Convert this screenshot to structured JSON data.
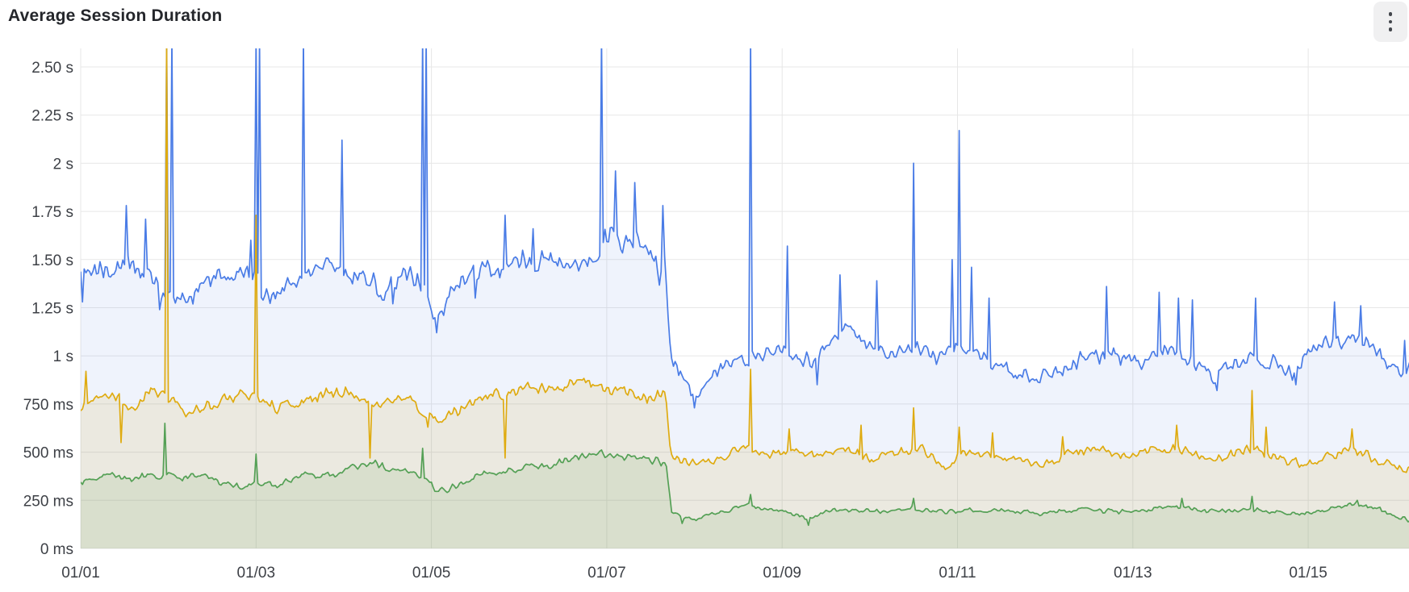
{
  "panel": {
    "title": "Average Session Duration",
    "menu_icon": "kebab-vertical"
  },
  "chart_data": {
    "type": "area",
    "title": "Average Session Duration",
    "unit": "seconds",
    "legend": "none-visible",
    "grid": true,
    "colors": {
      "grid": "#e7e7e7",
      "axis_text": "#3d4046",
      "background": "#ffffff"
    },
    "y_axis": {
      "min": 0,
      "max": 2.5,
      "ticks": [
        {
          "v": 0,
          "label": "0 ms"
        },
        {
          "v": 0.25,
          "label": "250 ms"
        },
        {
          "v": 0.5,
          "label": "500 ms"
        },
        {
          "v": 0.75,
          "label": "750 ms"
        },
        {
          "v": 1,
          "label": "1 s"
        },
        {
          "v": 1.25,
          "label": "1.25 s"
        },
        {
          "v": 1.5,
          "label": "1.50 s"
        },
        {
          "v": 1.75,
          "label": "1.75 s"
        },
        {
          "v": 2,
          "label": "2 s"
        },
        {
          "v": 2.25,
          "label": "2.25 s"
        },
        {
          "v": 2.5,
          "label": "2.50 s"
        }
      ]
    },
    "x_axis": {
      "start_day": 0,
      "end_day": 15.15,
      "ticks": [
        {
          "day": 0,
          "label": "01/01"
        },
        {
          "day": 2,
          "label": "01/03"
        },
        {
          "day": 4,
          "label": "01/05"
        },
        {
          "day": 6,
          "label": "01/07"
        },
        {
          "day": 8,
          "label": "01/09"
        },
        {
          "day": 10,
          "label": "01/11"
        },
        {
          "day": 12,
          "label": "01/13"
        },
        {
          "day": 14,
          "label": "01/15"
        }
      ]
    },
    "series": [
      {
        "name": "blue-series",
        "color": "#4a7ce6",
        "fill": "rgba(95,135,225,0.10)",
        "base": [
          [
            0,
            1.48
          ],
          [
            0.25,
            1.44
          ],
          [
            0.5,
            1.5
          ],
          [
            0.7,
            1.46
          ],
          [
            0.88,
            1.34
          ],
          [
            1.0,
            1.3
          ],
          [
            1.3,
            1.31
          ],
          [
            1.55,
            1.44
          ],
          [
            1.8,
            1.41
          ],
          [
            2.0,
            1.39
          ],
          [
            2.15,
            1.31
          ],
          [
            2.4,
            1.39
          ],
          [
            2.7,
            1.47
          ],
          [
            3.0,
            1.45
          ],
          [
            3.25,
            1.39
          ],
          [
            3.5,
            1.33
          ],
          [
            3.75,
            1.43
          ],
          [
            3.95,
            1.3
          ],
          [
            4.05,
            1.2
          ],
          [
            4.2,
            1.3
          ],
          [
            4.4,
            1.44
          ],
          [
            4.7,
            1.43
          ],
          [
            5.0,
            1.48
          ],
          [
            5.3,
            1.48
          ],
          [
            5.6,
            1.46
          ],
          [
            5.85,
            1.5
          ],
          [
            6.0,
            1.6
          ],
          [
            6.25,
            1.62
          ],
          [
            6.45,
            1.53
          ],
          [
            6.58,
            1.42
          ],
          [
            6.66,
            1.52
          ],
          [
            6.73,
            1.02
          ],
          [
            6.85,
            0.9
          ],
          [
            7.0,
            0.8
          ],
          [
            7.15,
            0.88
          ],
          [
            7.35,
            0.96
          ],
          [
            7.6,
            0.98
          ],
          [
            7.8,
            1.0
          ],
          [
            8.05,
            1.02
          ],
          [
            8.35,
            0.97
          ],
          [
            8.6,
            1.08
          ],
          [
            8.75,
            1.17
          ],
          [
            8.95,
            1.06
          ],
          [
            9.2,
            1.0
          ],
          [
            9.5,
            1.04
          ],
          [
            9.8,
            0.99
          ],
          [
            10.05,
            1.06
          ],
          [
            10.3,
            1.0
          ],
          [
            10.6,
            0.92
          ],
          [
            10.9,
            0.88
          ],
          [
            11.15,
            0.93
          ],
          [
            11.5,
            0.99
          ],
          [
            11.8,
            1.01
          ],
          [
            12.1,
            0.96
          ],
          [
            12.35,
            1.04
          ],
          [
            12.6,
            1.0
          ],
          [
            12.95,
            0.88
          ],
          [
            13.2,
            0.97
          ],
          [
            13.5,
            0.99
          ],
          [
            13.8,
            0.9
          ],
          [
            14.1,
            1.04
          ],
          [
            14.35,
            1.09
          ],
          [
            14.6,
            1.07
          ],
          [
            14.85,
            1.0
          ],
          [
            15.05,
            0.9
          ],
          [
            15.15,
            0.95
          ]
        ],
        "jitter": [
          [
            0,
            0.05
          ],
          [
            5.8,
            0.05
          ],
          [
            6.0,
            0.065
          ],
          [
            6.6,
            0.065
          ],
          [
            6.78,
            0.03
          ],
          [
            15.15,
            0.038
          ]
        ],
        "spikes": [
          [
            0.02,
            1.28
          ],
          [
            0.52,
            1.78
          ],
          [
            0.73,
            1.71
          ],
          [
            0.9,
            1.24
          ],
          [
            0.98,
            2.65
          ],
          [
            1.03,
            2.65
          ],
          [
            1.93,
            1.6
          ],
          [
            1.99,
            2.65
          ],
          [
            2.05,
            2.65
          ],
          [
            2.55,
            2.65
          ],
          [
            2.98,
            2.12
          ],
          [
            3.55,
            1.27
          ],
          [
            3.89,
            2.65
          ],
          [
            3.94,
            2.65
          ],
          [
            4.05,
            1.12
          ],
          [
            4.5,
            1.3
          ],
          [
            4.85,
            1.73
          ],
          [
            5.15,
            1.66
          ],
          [
            5.94,
            2.65
          ],
          [
            6.1,
            1.96
          ],
          [
            6.32,
            1.9
          ],
          [
            6.64,
            1.78
          ],
          [
            7.0,
            0.73
          ],
          [
            7.63,
            2.65
          ],
          [
            8.05,
            1.57
          ],
          [
            8.4,
            0.85
          ],
          [
            8.65,
            1.42
          ],
          [
            9.07,
            1.39
          ],
          [
            9.5,
            2.0
          ],
          [
            9.93,
            1.5
          ],
          [
            10.03,
            2.17
          ],
          [
            10.15,
            1.46
          ],
          [
            10.35,
            1.3
          ],
          [
            11.7,
            1.36
          ],
          [
            12.3,
            1.33
          ],
          [
            12.52,
            1.3
          ],
          [
            12.68,
            1.29
          ],
          [
            12.95,
            0.82
          ],
          [
            13.4,
            1.3
          ],
          [
            13.85,
            0.85
          ],
          [
            14.3,
            1.28
          ],
          [
            14.6,
            1.26
          ],
          [
            15.1,
            1.08
          ]
        ]
      },
      {
        "name": "yellow-series",
        "color": "#dfab10",
        "fill": "rgba(205,165,25,0.12)",
        "base": [
          [
            0,
            0.74
          ],
          [
            0.2,
            0.78
          ],
          [
            0.4,
            0.8
          ],
          [
            0.55,
            0.72
          ],
          [
            0.8,
            0.82
          ],
          [
            1.0,
            0.78
          ],
          [
            1.2,
            0.72
          ],
          [
            1.5,
            0.75
          ],
          [
            1.8,
            0.8
          ],
          [
            2.0,
            0.78
          ],
          [
            2.2,
            0.73
          ],
          [
            2.5,
            0.76
          ],
          [
            2.8,
            0.8
          ],
          [
            3.1,
            0.82
          ],
          [
            3.3,
            0.75
          ],
          [
            3.6,
            0.79
          ],
          [
            3.9,
            0.72
          ],
          [
            4.05,
            0.65
          ],
          [
            4.25,
            0.7
          ],
          [
            4.5,
            0.78
          ],
          [
            4.8,
            0.8
          ],
          [
            5.1,
            0.84
          ],
          [
            5.4,
            0.82
          ],
          [
            5.7,
            0.86
          ],
          [
            6.0,
            0.84
          ],
          [
            6.3,
            0.8
          ],
          [
            6.55,
            0.78
          ],
          [
            6.67,
            0.8
          ],
          [
            6.73,
            0.48
          ],
          [
            6.9,
            0.45
          ],
          [
            7.1,
            0.44
          ],
          [
            7.4,
            0.5
          ],
          [
            7.6,
            0.52
          ],
          [
            7.8,
            0.48
          ],
          [
            8.1,
            0.5
          ],
          [
            8.4,
            0.48
          ],
          [
            8.7,
            0.52
          ],
          [
            9.0,
            0.46
          ],
          [
            9.3,
            0.5
          ],
          [
            9.6,
            0.52
          ],
          [
            9.85,
            0.42
          ],
          [
            10.1,
            0.5
          ],
          [
            10.4,
            0.48
          ],
          [
            10.7,
            0.46
          ],
          [
            11.0,
            0.44
          ],
          [
            11.3,
            0.5
          ],
          [
            11.6,
            0.52
          ],
          [
            11.9,
            0.48
          ],
          [
            12.2,
            0.5
          ],
          [
            12.5,
            0.52
          ],
          [
            12.8,
            0.46
          ],
          [
            13.1,
            0.48
          ],
          [
            13.36,
            0.52
          ],
          [
            13.6,
            0.47
          ],
          [
            13.9,
            0.44
          ],
          [
            14.2,
            0.48
          ],
          [
            14.5,
            0.52
          ],
          [
            14.8,
            0.46
          ],
          [
            15.0,
            0.42
          ],
          [
            15.15,
            0.41
          ]
        ],
        "jitter": [
          [
            0,
            0.027
          ],
          [
            6.65,
            0.027
          ],
          [
            6.78,
            0.02
          ],
          [
            15.15,
            0.021
          ]
        ],
        "spikes": [
          [
            0.05,
            0.92
          ],
          [
            0.45,
            0.55
          ],
          [
            0.98,
            2.65
          ],
          [
            2.0,
            1.73
          ],
          [
            3.3,
            0.47
          ],
          [
            3.95,
            0.63
          ],
          [
            4.85,
            0.47
          ],
          [
            7.63,
            0.93
          ],
          [
            8.08,
            0.62
          ],
          [
            8.9,
            0.64
          ],
          [
            9.5,
            0.73
          ],
          [
            10.03,
            0.63
          ],
          [
            10.4,
            0.6
          ],
          [
            11.2,
            0.58
          ],
          [
            12.5,
            0.64
          ],
          [
            13.36,
            0.82
          ],
          [
            13.52,
            0.63
          ],
          [
            14.5,
            0.62
          ]
        ]
      },
      {
        "name": "green-series",
        "color": "#54a055",
        "fill": "rgba(90,155,75,0.12)",
        "base": [
          [
            0,
            0.34
          ],
          [
            0.2,
            0.37
          ],
          [
            0.4,
            0.38
          ],
          [
            0.6,
            0.36
          ],
          [
            0.8,
            0.38
          ],
          [
            1.0,
            0.38
          ],
          [
            1.2,
            0.37
          ],
          [
            1.4,
            0.38
          ],
          [
            1.6,
            0.34
          ],
          [
            1.8,
            0.32
          ],
          [
            2.0,
            0.34
          ],
          [
            2.2,
            0.33
          ],
          [
            2.4,
            0.36
          ],
          [
            2.6,
            0.38
          ],
          [
            2.8,
            0.38
          ],
          [
            3.0,
            0.4
          ],
          [
            3.2,
            0.43
          ],
          [
            3.35,
            0.45
          ],
          [
            3.5,
            0.41
          ],
          [
            3.7,
            0.4
          ],
          [
            3.9,
            0.38
          ],
          [
            4.05,
            0.3
          ],
          [
            4.2,
            0.31
          ],
          [
            4.5,
            0.38
          ],
          [
            4.8,
            0.4
          ],
          [
            5.1,
            0.42
          ],
          [
            5.4,
            0.44
          ],
          [
            5.6,
            0.47
          ],
          [
            5.9,
            0.5
          ],
          [
            6.1,
            0.48
          ],
          [
            6.3,
            0.47
          ],
          [
            6.5,
            0.46
          ],
          [
            6.68,
            0.44
          ],
          [
            6.74,
            0.19
          ],
          [
            6.85,
            0.16
          ],
          [
            7.0,
            0.15
          ],
          [
            7.2,
            0.18
          ],
          [
            7.4,
            0.2
          ],
          [
            7.6,
            0.23
          ],
          [
            7.75,
            0.21
          ],
          [
            8.0,
            0.19
          ],
          [
            8.3,
            0.16
          ],
          [
            8.6,
            0.2
          ],
          [
            8.9,
            0.2
          ],
          [
            9.2,
            0.19
          ],
          [
            9.5,
            0.21
          ],
          [
            9.8,
            0.19
          ],
          [
            10.1,
            0.2
          ],
          [
            10.4,
            0.2
          ],
          [
            10.7,
            0.19
          ],
          [
            11.0,
            0.18
          ],
          [
            11.3,
            0.2
          ],
          [
            11.6,
            0.2
          ],
          [
            11.9,
            0.19
          ],
          [
            12.2,
            0.2
          ],
          [
            12.45,
            0.22
          ],
          [
            12.7,
            0.2
          ],
          [
            13.0,
            0.19
          ],
          [
            13.3,
            0.2
          ],
          [
            13.6,
            0.19
          ],
          [
            13.9,
            0.18
          ],
          [
            14.2,
            0.2
          ],
          [
            14.55,
            0.23
          ],
          [
            14.8,
            0.21
          ],
          [
            15.0,
            0.16
          ],
          [
            15.15,
            0.15
          ]
        ],
        "jitter": [
          [
            0,
            0.015
          ],
          [
            6.65,
            0.015
          ],
          [
            6.78,
            0.009
          ],
          [
            15.15,
            0.011
          ]
        ],
        "spikes": [
          [
            0.95,
            0.65
          ],
          [
            2.0,
            0.49
          ],
          [
            3.9,
            0.52
          ],
          [
            6.85,
            0.13
          ],
          [
            7.63,
            0.28
          ],
          [
            8.3,
            0.12
          ],
          [
            9.5,
            0.26
          ],
          [
            12.55,
            0.26
          ],
          [
            13.36,
            0.27
          ],
          [
            14.55,
            0.25
          ]
        ]
      }
    ]
  }
}
